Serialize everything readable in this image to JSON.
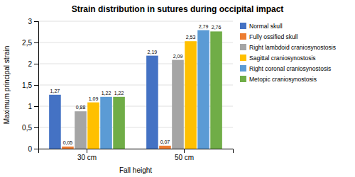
{
  "chart_data": {
    "type": "bar",
    "title": "Strain distribution in sutures during occipital impact",
    "x_label": "Fall height",
    "y_label": "Maximum principal strain",
    "categories": [
      "30 cm",
      "50 cm"
    ],
    "series": [
      {
        "name": "Normal skull",
        "color": "#4472C4",
        "values": [
          1.27,
          2.19
        ],
        "value_labels": [
          "1,27",
          "2,19"
        ]
      },
      {
        "name": "Fully ossified skull",
        "color": "#ED7D31",
        "values": [
          0.05,
          0.07
        ],
        "value_labels": [
          "0,05",
          "0,07"
        ]
      },
      {
        "name": "Right lambdoid craniosynostosis",
        "color": "#A5A5A5",
        "values": [
          0.88,
          2.09
        ],
        "value_labels": [
          "0,88",
          "2,09"
        ]
      },
      {
        "name": "Sagittal craniosynostosis",
        "color": "#FFC000",
        "values": [
          1.09,
          2.53
        ],
        "value_labels": [
          "1,09",
          "2,53"
        ]
      },
      {
        "name": "Right coronal craniosynostosis",
        "color": "#5B9BD5",
        "values": [
          1.22,
          2.79
        ],
        "value_labels": [
          "1,22",
          "2,79"
        ]
      },
      {
        "name": "Metopic craniosynostosis",
        "color": "#70AD47",
        "values": [
          1.22,
          2.76
        ],
        "value_labels": [
          "1,22",
          "2,76"
        ]
      }
    ],
    "ylim": [
      0,
      3.0
    ],
    "yticks": [
      0,
      {
        "value": 0.5,
        "label": "0,5"
      },
      1,
      {
        "value": 1.5,
        "label": "1,5"
      },
      2,
      {
        "value": 2.5,
        "label": "2,5"
      },
      3
    ],
    "grid": true,
    "legend": "right",
    "data_labels": true
  }
}
